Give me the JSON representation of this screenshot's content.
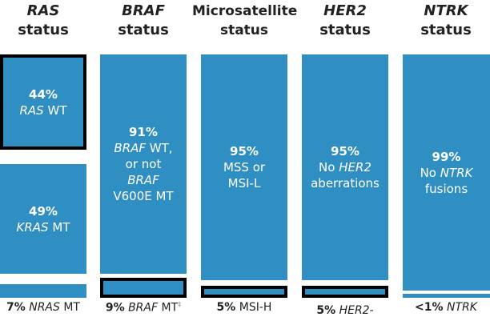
{
  "colors": {
    "bar": "#2f8fc2",
    "highlight_border": "#000000"
  },
  "columns": [
    {
      "header_gene": "RAS",
      "header_suffix": "status",
      "segments": [
        {
          "pct": "44%",
          "text_gene": "RAS",
          "text": " WT"
        },
        {
          "pct": "49%",
          "text_gene": "KRAS",
          "text": " MT"
        }
      ],
      "bottom": {
        "pct": "7%",
        "gene": "NRAS",
        "text": " MT"
      }
    },
    {
      "header_gene": "BRAF",
      "header_suffix": "status",
      "segments": [
        {
          "pct": "91%",
          "line1_gene": "BRAF",
          "line1": " WT,",
          "line2": "or not",
          "line3_gene": "BRAF",
          "line4": "V600E MT"
        }
      ],
      "bottom": {
        "pct": "9%",
        "gene": "BRAF",
        "text": " MT",
        "mark": "‡"
      }
    },
    {
      "header_gene": "Microsatellite",
      "header_suffix": "status",
      "segments": [
        {
          "pct": "95%",
          "line1": "MSS or",
          "line2": "MSI-L"
        }
      ],
      "bottom": {
        "pct": "5%",
        "text": " MSI-H"
      }
    },
    {
      "header_gene": "HER2",
      "header_suffix": "status",
      "segments": [
        {
          "pct": "95%",
          "line1": "No ",
          "line1_gene": "HER2",
          "line2": "aberrations"
        }
      ],
      "bottom": {
        "pct": "5%",
        "gene": "HER2-"
      }
    },
    {
      "header_gene": "NTRK",
      "header_suffix": "status",
      "segments": [
        {
          "pct": "99%",
          "line1": "No ",
          "line1_gene": "NTRK",
          "line2": "fusions"
        }
      ],
      "bottom": {
        "pct": "<1%",
        "gene": "NTRK"
      }
    }
  ]
}
